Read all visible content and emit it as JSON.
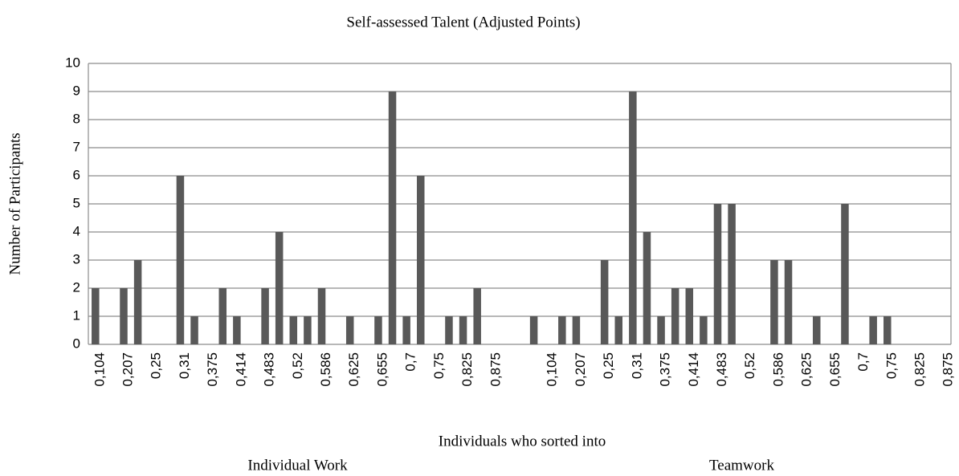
{
  "chart_data": {
    "type": "bar",
    "title": "Self-assessed Talent (Adjusted Points)",
    "ylabel": "Number of Participants",
    "xlabel": "Individuals who sorted into",
    "groups": [
      "Individual Work",
      "Teamwork"
    ],
    "categories": [
      "0,104",
      null,
      "0,207",
      null,
      "0,25",
      null,
      "0,31",
      null,
      "0,375",
      null,
      "0,414",
      null,
      "0,483",
      null,
      "0,52",
      null,
      "0,586",
      null,
      "0,625",
      null,
      "0,655",
      null,
      "0,7",
      null,
      "0,75",
      null,
      "0,825",
      null,
      "0,875",
      null,
      null,
      null,
      "0,104",
      null,
      "0,207",
      null,
      "0,25",
      null,
      "0,31",
      null,
      "0,375",
      null,
      "0,414",
      null,
      "0,483",
      null,
      "0,52",
      null,
      "0,586",
      null,
      "0,625",
      null,
      "0,655",
      null,
      "0,7",
      null,
      "0,75",
      null,
      "0,825",
      null,
      "0,875"
    ],
    "values": [
      2,
      0,
      2,
      3,
      0,
      0,
      6,
      1,
      0,
      2,
      1,
      0,
      2,
      4,
      1,
      1,
      2,
      0,
      1,
      0,
      1,
      9,
      1,
      6,
      0,
      1,
      1,
      2,
      0,
      0,
      0,
      1,
      0,
      1,
      1,
      0,
      3,
      1,
      9,
      4,
      1,
      2,
      2,
      1,
      5,
      5,
      0,
      0,
      3,
      3,
      0,
      1,
      0,
      5,
      0,
      1,
      1,
      0,
      0,
      0,
      0
    ],
    "color": "#595959",
    "ylim": [
      0,
      10
    ],
    "yticks": [
      0,
      1,
      2,
      3,
      4,
      5,
      6,
      7,
      8,
      9,
      10
    ],
    "grid": true
  }
}
